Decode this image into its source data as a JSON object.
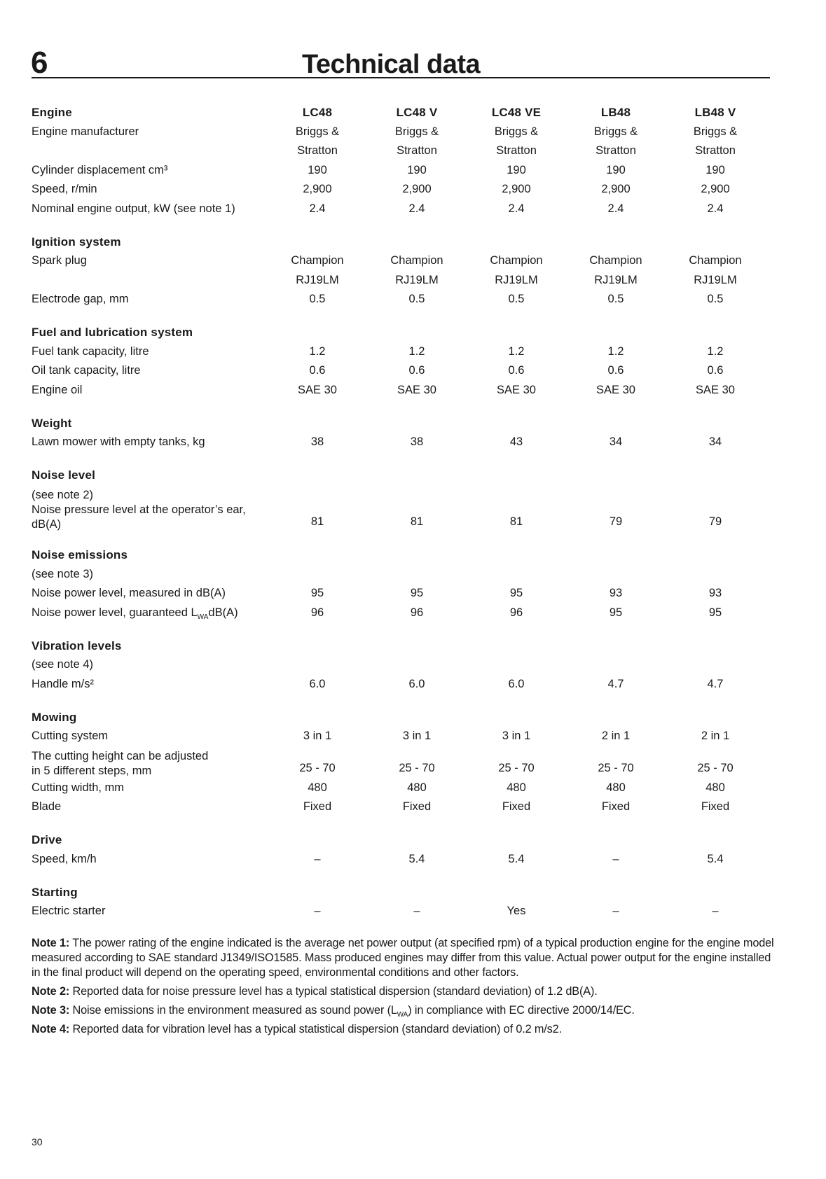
{
  "header": {
    "chapter": "6",
    "title": "Technical data"
  },
  "models": [
    "LC48",
    "LC48 V",
    "LC48 VE",
    "LB48",
    "LB48 V"
  ],
  "sections": [
    {
      "title": "Engine",
      "show_models": true,
      "rows": [
        {
          "label": "Engine manufacturer",
          "values": [
            "Briggs &\nStratton",
            "Briggs &\nStratton",
            "Briggs &\nStratton",
            "Briggs &\nStratton",
            "Briggs &\nStratton"
          ],
          "valign": "top"
        },
        {
          "label": "Cylinder displacement cm³",
          "values": [
            "190",
            "190",
            "190",
            "190",
            "190"
          ]
        },
        {
          "label": "Speed, r/min",
          "values": [
            "2,900",
            "2,900",
            "2,900",
            "2,900",
            "2,900"
          ]
        },
        {
          "label": "Nominal engine output, kW (see note 1)",
          "values": [
            "2.4",
            "2.4",
            "2.4",
            "2.4",
            "2.4"
          ]
        }
      ]
    },
    {
      "title": "Ignition system",
      "rows": [
        {
          "label": "Spark plug",
          "values": [
            "Champion\nRJ19LM",
            "Champion\nRJ19LM",
            "Champion\nRJ19LM",
            "Champion\nRJ19LM",
            "Champion\nRJ19LM"
          ],
          "valign": "top"
        },
        {
          "label": "Electrode gap, mm",
          "values": [
            "0.5",
            "0.5",
            "0.5",
            "0.5",
            "0.5"
          ]
        }
      ]
    },
    {
      "title": "Fuel and lubrication system",
      "rows": [
        {
          "label": "Fuel tank capacity, litre",
          "values": [
            "1.2",
            "1.2",
            "1.2",
            "1.2",
            "1.2"
          ]
        },
        {
          "label": "Oil tank capacity, litre",
          "values": [
            "0.6",
            "0.6",
            "0.6",
            "0.6",
            "0.6"
          ]
        },
        {
          "label": "Engine oil",
          "values": [
            "SAE 30",
            "SAE 30",
            "SAE 30",
            "SAE 30",
            "SAE 30"
          ]
        }
      ]
    },
    {
      "title": "Weight",
      "rows": [
        {
          "label": "Lawn mower with empty tanks, kg",
          "values": [
            "38",
            "38",
            "43",
            "34",
            "34"
          ]
        }
      ]
    },
    {
      "title": "Noise level",
      "rows": [
        {
          "label": "(see note 2)\nNoise pressure level at the operator’s ear, dB(A)",
          "values": [
            "81",
            "81",
            "81",
            "79",
            "79"
          ],
          "tight": true
        }
      ]
    },
    {
      "title": "Noise emissions",
      "rows": [
        {
          "label": "(see note 3)",
          "values": []
        },
        {
          "label": "Noise power level, measured in dB(A)",
          "values": [
            "95",
            "95",
            "95",
            "93",
            "93"
          ]
        },
        {
          "label": "Noise power level, guaranteed L",
          "sub": "WA",
          "label_after": "dB(A)",
          "values": [
            "96",
            "96",
            "96",
            "95",
            "95"
          ]
        }
      ]
    },
    {
      "title": "Vibration levels",
      "rows": [
        {
          "label": "(see note 4)",
          "values": []
        },
        {
          "label": "Handle m/s²",
          "values": [
            "6.0",
            "6.0",
            "6.0",
            "4.7",
            "4.7"
          ]
        }
      ]
    },
    {
      "title": "Mowing",
      "rows": [
        {
          "label": "Cutting system",
          "values": [
            "3 in 1",
            "3 in 1",
            "3 in 1",
            "2 in 1",
            "2 in 1"
          ]
        },
        {
          "label": "The cutting height can be adjusted\nin 5 different steps, mm",
          "values": [
            "25 - 70",
            "25 - 70",
            "25 - 70",
            "25 - 70",
            "25 - 70"
          ],
          "tight": true
        },
        {
          "label": "Cutting width, mm",
          "values": [
            "480",
            "480",
            "480",
            "480",
            "480"
          ]
        },
        {
          "label": "Blade",
          "values": [
            "Fixed",
            "Fixed",
            "Fixed",
            "Fixed",
            "Fixed"
          ]
        }
      ]
    },
    {
      "title": "Drive",
      "rows": [
        {
          "label": "Speed, km/h",
          "values": [
            "–",
            "5.4",
            "5.4",
            "–",
            "5.4"
          ]
        }
      ]
    },
    {
      "title": "Starting",
      "rows": [
        {
          "label": "Electric starter",
          "values": [
            "–",
            "–",
            "Yes",
            "–",
            "–"
          ]
        }
      ]
    }
  ],
  "notes": [
    {
      "tag": "Note 1:",
      "text": "The power rating of the engine indicated is the average net power output (at specified rpm) of a typical production engine for the engine model measured according to SAE standard J1349/ISO1585. Mass produced engines may differ from this value. Actual power output for the engine installed in the final product will depend on the operating speed, environmental conditions and other factors."
    },
    {
      "tag": "Note 2:",
      "text": "Reported data for noise pressure level has a typical statistical dispersion (standard deviation) of 1.2 dB(A)."
    },
    {
      "tag": "Note 3:",
      "text": "Noise emissions in the environment measured as sound power (L",
      "sub": "WA",
      "text_after": ") in compliance with EC directive 2000/14/EC."
    },
    {
      "tag": "Note 4:",
      "text": "Reported data for vibration level has a typical statistical dispersion (standard deviation) of 0.2 m/s2."
    }
  ],
  "page_number": "30"
}
